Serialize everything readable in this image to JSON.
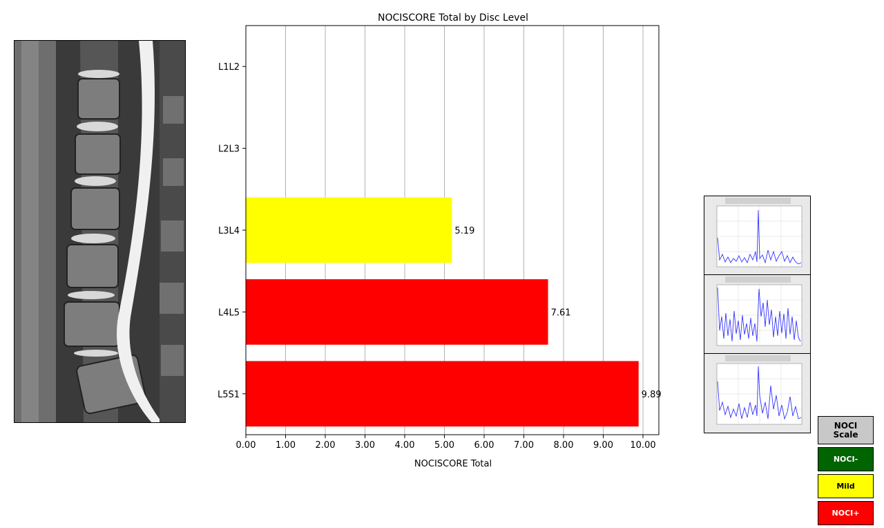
{
  "chart_data": {
    "type": "bar",
    "orientation": "horizontal",
    "title": "NOCISCORE Total by Disc Level",
    "xlabel": "NOCISCORE Total",
    "ylabel": "",
    "categories": [
      "L1L2",
      "L2L3",
      "L3L4",
      "L4L5",
      "L5S1"
    ],
    "values": [
      null,
      null,
      5.19,
      7.61,
      9.89
    ],
    "value_labels": [
      "",
      "",
      "5.19",
      "7.61",
      "9.89"
    ],
    "bar_colors": [
      "",
      "",
      "#ffff00",
      "#ff0000",
      "#ff0000"
    ],
    "xlim": [
      0,
      10.4
    ],
    "xticks": [
      0,
      1,
      2,
      3,
      4,
      5,
      6,
      7,
      8,
      9,
      10
    ],
    "xtick_labels": [
      "0.00",
      "1.00",
      "2.00",
      "3.00",
      "4.00",
      "5.00",
      "6.00",
      "7.00",
      "8.00",
      "9.00",
      "10.00"
    ],
    "grid": "vertical"
  },
  "legend": {
    "items": [
      {
        "label": "NOCI Scale",
        "color": "#c8c8c8",
        "text_color": "#000000"
      },
      {
        "label": "NOCI-",
        "color": "#006400",
        "text_color": "#ffffff"
      },
      {
        "label": "Mild",
        "color": "#ffff00",
        "text_color": "#000000"
      },
      {
        "label": "NOCI+",
        "color": "#ff0000",
        "text_color": "#ffffff"
      }
    ]
  },
  "spectra": {
    "panels": [
      {
        "level": "L3L4"
      },
      {
        "level": "L4L5"
      },
      {
        "level": "L5S1"
      }
    ],
    "line_color": "#3333ff"
  }
}
